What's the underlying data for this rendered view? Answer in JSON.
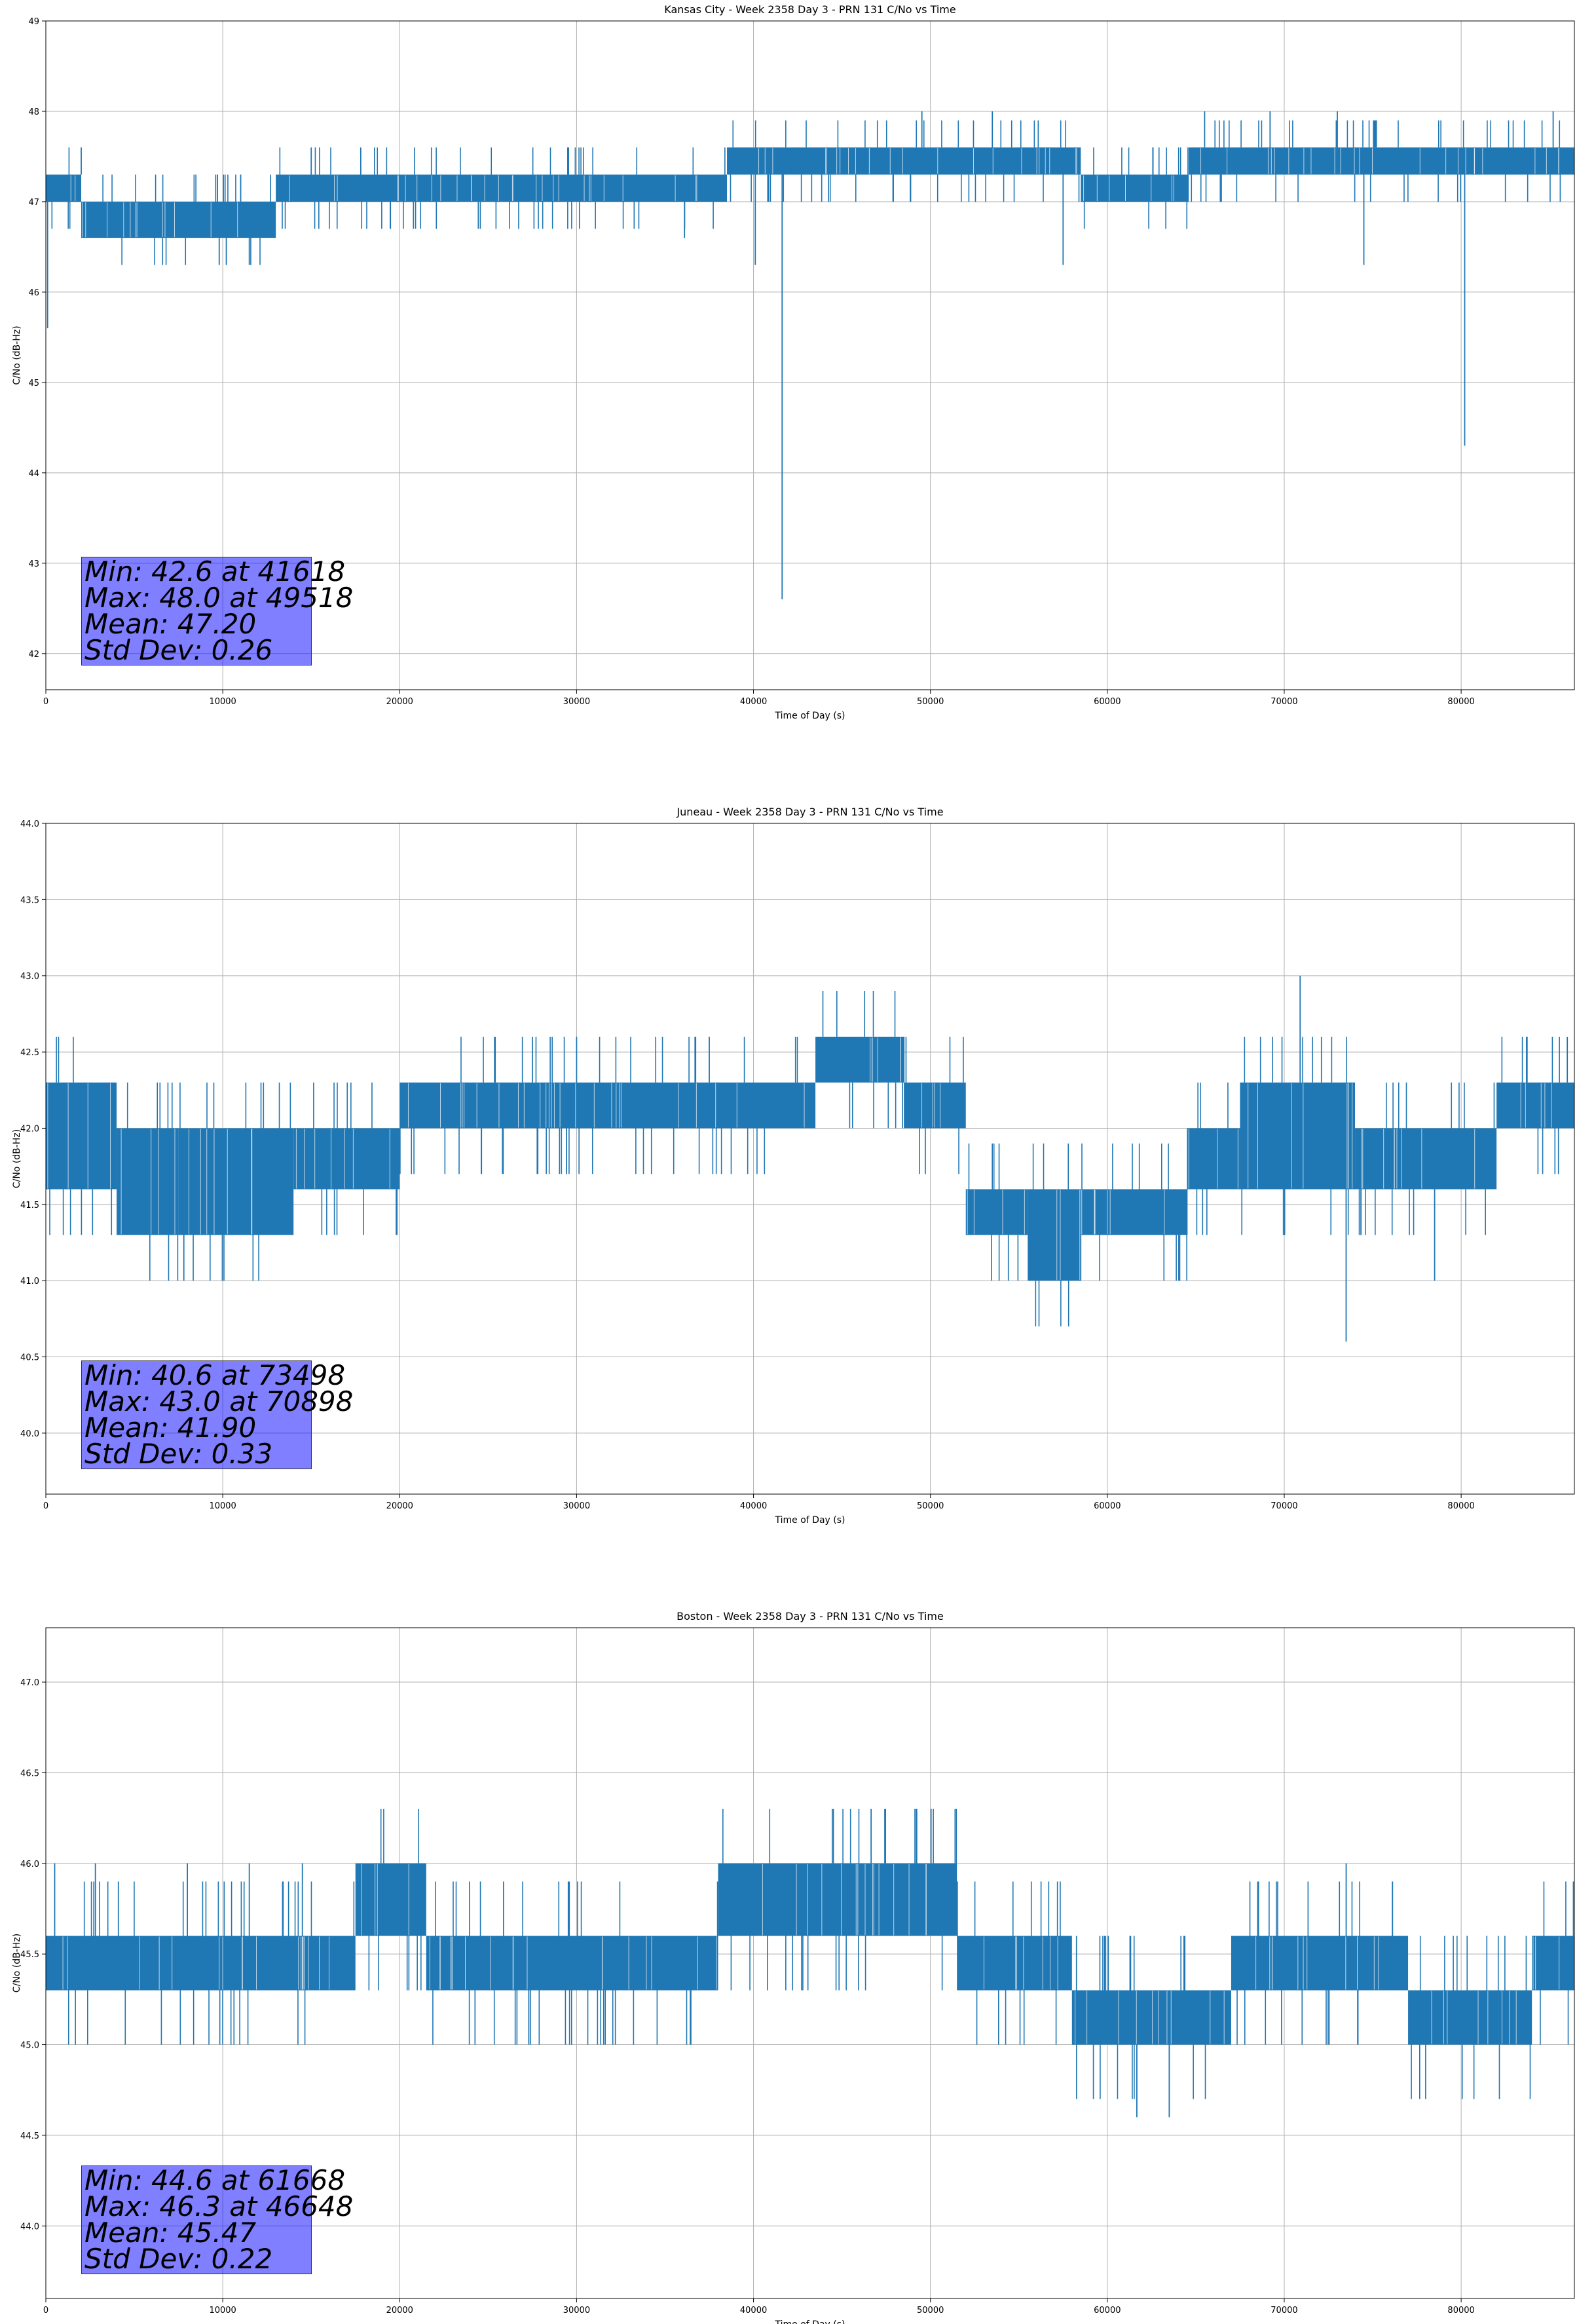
{
  "colors": {
    "series": "#1f77b4",
    "grid": "#b0b0b0",
    "stats_box": "#0000ff"
  },
  "chart_data": [
    {
      "type": "line",
      "title": "Kansas City - Week 2358 Day 3 - PRN 131 C/No vs Time",
      "xlabel": "Time of Day (s)",
      "ylabel": "C/No (dB-Hz)",
      "xlim": [
        0,
        86400
      ],
      "ylim": [
        41.6,
        49.0
      ],
      "xticks": [
        0,
        10000,
        20000,
        30000,
        40000,
        50000,
        60000,
        70000,
        80000
      ],
      "yticks": [
        42,
        43,
        44,
        45,
        46,
        47,
        48,
        49
      ],
      "ytick_decimals": 0,
      "grid": true,
      "segments": [
        {
          "x0": 0,
          "x1": 2000,
          "lo": 47.0,
          "hi": 47.3
        },
        {
          "x0": 2000,
          "x1": 13000,
          "lo": 46.6,
          "hi": 47.0
        },
        {
          "x0": 13000,
          "x1": 38500,
          "lo": 47.0,
          "hi": 47.3
        },
        {
          "x0": 38500,
          "x1": 46500,
          "lo": 47.3,
          "hi": 47.6
        },
        {
          "x0": 46500,
          "x1": 58500,
          "lo": 47.3,
          "hi": 47.6
        },
        {
          "x0": 58500,
          "x1": 64600,
          "lo": 47.0,
          "hi": 47.3
        },
        {
          "x0": 64600,
          "x1": 86400,
          "lo": 47.3,
          "hi": 47.6
        }
      ],
      "spikes": [
        {
          "x": 100,
          "y": 45.6
        },
        {
          "x": 2000,
          "y": 47.6
        },
        {
          "x": 9800,
          "y": 46.3
        },
        {
          "x": 10200,
          "y": 46.3
        },
        {
          "x": 11500,
          "y": 46.3
        },
        {
          "x": 15000,
          "y": 47.6
        },
        {
          "x": 17800,
          "y": 47.6
        },
        {
          "x": 29500,
          "y": 47.6
        },
        {
          "x": 36100,
          "y": 46.6
        },
        {
          "x": 40100,
          "y": 46.3
        },
        {
          "x": 41618,
          "y": 42.6
        },
        {
          "x": 49518,
          "y": 48.0
        },
        {
          "x": 53500,
          "y": 48.0
        },
        {
          "x": 57500,
          "y": 46.3
        },
        {
          "x": 65500,
          "y": 48.0
        },
        {
          "x": 69200,
          "y": 48.0
        },
        {
          "x": 73000,
          "y": 48.0
        },
        {
          "x": 74500,
          "y": 46.3
        },
        {
          "x": 80200,
          "y": 44.3
        },
        {
          "x": 85200,
          "y": 48.0
        }
      ],
      "stats": [
        "Min: 42.6 at 41618",
        "Max: 48.0 at 49518",
        "Mean: 47.20",
        "Std Dev: 0.26"
      ]
    },
    {
      "type": "line",
      "title": "Juneau - Week 2358 Day 3 - PRN 131 C/No vs Time",
      "xlabel": "Time of Day (s)",
      "ylabel": "C/No (dB-Hz)",
      "xlim": [
        0,
        86400
      ],
      "ylim": [
        39.6,
        44.0
      ],
      "xticks": [
        0,
        10000,
        20000,
        30000,
        40000,
        50000,
        60000,
        70000,
        80000
      ],
      "yticks": [
        40.0,
        40.5,
        41.0,
        41.5,
        42.0,
        42.5,
        43.0,
        43.5,
        44.0
      ],
      "ytick_decimals": 1,
      "grid": true,
      "segments": [
        {
          "x0": 0,
          "x1": 4000,
          "lo": 41.6,
          "hi": 42.3
        },
        {
          "x0": 4000,
          "x1": 7500,
          "lo": 41.3,
          "hi": 42.0
        },
        {
          "x0": 7500,
          "x1": 14000,
          "lo": 41.3,
          "hi": 42.0
        },
        {
          "x0": 14000,
          "x1": 20000,
          "lo": 41.6,
          "hi": 42.0
        },
        {
          "x0": 20000,
          "x1": 43500,
          "lo": 42.0,
          "hi": 42.3
        },
        {
          "x0": 43500,
          "x1": 48500,
          "lo": 42.3,
          "hi": 42.6
        },
        {
          "x0": 48500,
          "x1": 52000,
          "lo": 42.0,
          "hi": 42.3
        },
        {
          "x0": 52000,
          "x1": 55500,
          "lo": 41.3,
          "hi": 41.6
        },
        {
          "x0": 55500,
          "x1": 58500,
          "lo": 41.0,
          "hi": 41.6
        },
        {
          "x0": 58500,
          "x1": 64500,
          "lo": 41.3,
          "hi": 41.6
        },
        {
          "x0": 64500,
          "x1": 67500,
          "lo": 41.6,
          "hi": 42.0
        },
        {
          "x0": 67500,
          "x1": 74000,
          "lo": 41.6,
          "hi": 42.3
        },
        {
          "x0": 74000,
          "x1": 82000,
          "lo": 41.6,
          "hi": 42.0
        },
        {
          "x0": 82000,
          "x1": 86400,
          "lo": 42.0,
          "hi": 42.3
        }
      ],
      "spikes": [
        {
          "x": 7800,
          "y": 41.0
        },
        {
          "x": 27500,
          "y": 42.6
        },
        {
          "x": 30000,
          "y": 42.6
        },
        {
          "x": 37500,
          "y": 42.6
        },
        {
          "x": 70898,
          "y": 43.0
        },
        {
          "x": 73498,
          "y": 40.6
        },
        {
          "x": 78500,
          "y": 41.0
        },
        {
          "x": 86000,
          "y": 42.6
        }
      ],
      "stats": [
        "Min: 40.6 at 73498",
        "Max: 43.0 at 70898",
        "Mean: 41.90",
        "Std Dev: 0.33"
      ]
    },
    {
      "type": "line",
      "title": "Boston - Week 2358 Day 3 - PRN 131 C/No vs Time",
      "xlabel": "Time of Day (s)",
      "ylabel": "C/No (dB-Hz)",
      "xlim": [
        0,
        86400
      ],
      "ylim": [
        43.6,
        47.3
      ],
      "xticks": [
        0,
        10000,
        20000,
        30000,
        40000,
        50000,
        60000,
        70000,
        80000
      ],
      "yticks": [
        44.0,
        44.5,
        45.0,
        45.5,
        46.0,
        46.5,
        47.0
      ],
      "ytick_decimals": 1,
      "grid": true,
      "segments": [
        {
          "x0": 0,
          "x1": 17500,
          "lo": 45.3,
          "hi": 45.6
        },
        {
          "x0": 17500,
          "x1": 21500,
          "lo": 45.6,
          "hi": 46.0
        },
        {
          "x0": 21500,
          "x1": 38000,
          "lo": 45.3,
          "hi": 45.6
        },
        {
          "x0": 38000,
          "x1": 51500,
          "lo": 45.6,
          "hi": 46.0
        },
        {
          "x0": 51500,
          "x1": 58000,
          "lo": 45.3,
          "hi": 45.6
        },
        {
          "x0": 58000,
          "x1": 67000,
          "lo": 45.0,
          "hi": 45.3
        },
        {
          "x0": 67000,
          "x1": 77000,
          "lo": 45.3,
          "hi": 45.6
        },
        {
          "x0": 77000,
          "x1": 84000,
          "lo": 45.0,
          "hi": 45.3
        },
        {
          "x0": 84000,
          "x1": 86400,
          "lo": 45.3,
          "hi": 45.6
        }
      ],
      "spikes": [
        {
          "x": 500,
          "y": 46.0
        },
        {
          "x": 2800,
          "y": 46.0
        },
        {
          "x": 8000,
          "y": 46.0
        },
        {
          "x": 11500,
          "y": 46.0
        },
        {
          "x": 14500,
          "y": 46.0
        },
        {
          "x": 27300,
          "y": 45.0
        },
        {
          "x": 46648,
          "y": 46.3
        },
        {
          "x": 61668,
          "y": 44.6
        },
        {
          "x": 63500,
          "y": 44.6
        },
        {
          "x": 73500,
          "y": 46.0
        }
      ],
      "stats": [
        "Min: 44.6 at 61668",
        "Max: 46.3 at 46648",
        "Mean: 45.47",
        "Std Dev: 0.22"
      ]
    }
  ]
}
